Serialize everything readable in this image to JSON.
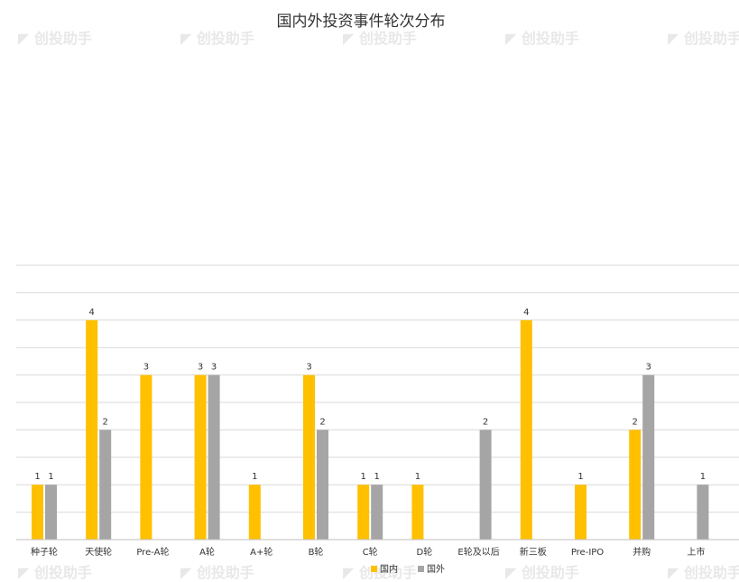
{
  "chart_data": {
    "type": "bar",
    "title": "国内外投资事件轮次分布",
    "categories": [
      "种子轮",
      "天使轮",
      "Pre-A轮",
      "A轮",
      "A+轮",
      "B轮",
      "C轮",
      "D轮",
      "E轮及以后",
      "新三板",
      "Pre-IPO",
      "并购",
      "上市"
    ],
    "series": [
      {
        "name": "国内",
        "color": "#FFC000",
        "values": [
          1,
          4,
          3,
          3,
          1,
          3,
          1,
          1,
          0,
          4,
          1,
          2,
          0
        ]
      },
      {
        "name": "国外",
        "color": "#A5A5A5",
        "values": [
          1,
          2,
          0,
          3,
          0,
          2,
          1,
          0,
          2,
          0,
          0,
          3,
          1
        ]
      }
    ],
    "ylim": [
      0,
      4.5
    ],
    "grid": true,
    "legend": "bottom",
    "watermark": "创投助手"
  }
}
